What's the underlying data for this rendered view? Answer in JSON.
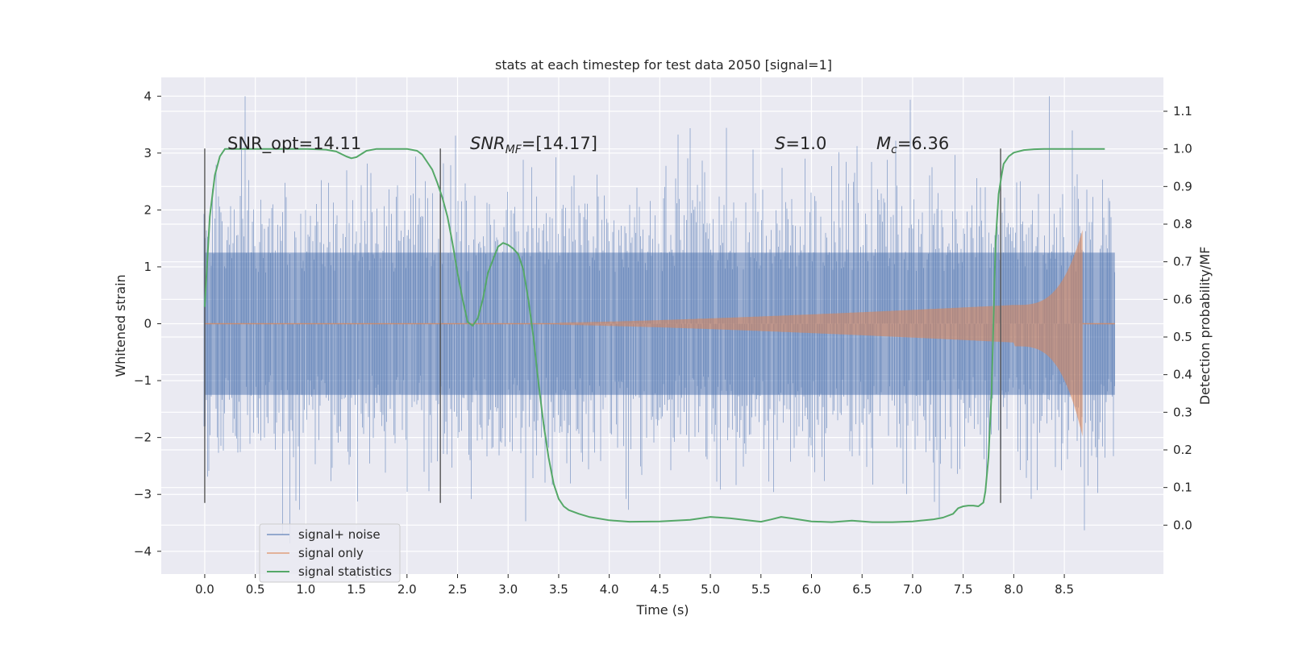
{
  "chart_data": {
    "type": "line",
    "title": "stats at each timestep for test data 2050 [signal=1]",
    "xlabel": "Time (s)",
    "ylabel": "Whitened strain",
    "y2label": "Detection probability/MF",
    "xlim": [
      -0.43,
      9.48
    ],
    "ylim": [
      -4.4,
      4.33
    ],
    "y2lim": [
      -0.13,
      1.19
    ],
    "xticks": [
      "0.0",
      "0.5",
      "1.0",
      "1.5",
      "2.0",
      "2.5",
      "3.0",
      "3.5",
      "4.0",
      "4.5",
      "5.0",
      "5.5",
      "6.0",
      "6.5",
      "7.0",
      "7.5",
      "8.0",
      "8.5"
    ],
    "yticks": [
      "4",
      "3",
      "2",
      "1",
      "0",
      "−1",
      "−2",
      "−3",
      "−4"
    ],
    "y2ticks": [
      "1.1",
      "1.0",
      "0.9",
      "0.8",
      "0.7",
      "0.6",
      "0.5",
      "0.4",
      "0.3",
      "0.2",
      "0.1",
      "0.0"
    ],
    "vlines": [
      0.0,
      2.33,
      7.87
    ],
    "vline_range": [
      -3.15,
      3.08
    ],
    "colors": {
      "plot_bg": "#eaeaf2",
      "grid": "#ffffff",
      "noise": "#4c72b0",
      "signal": "#dd8452",
      "stats": "#55a868",
      "vline": "#555555"
    },
    "legend_position": "lower-left",
    "annotations": {
      "snr_opt": "SNR_opt=14.11",
      "snr_mf_base": "SNR",
      "snr_mf_sub": "MF",
      "snr_mf_rest": "=[14.17]",
      "s_italic": "S",
      "s_rest": "=1.0",
      "mc_italic": "M",
      "mc_sub": "c",
      "mc_rest": "=6.36"
    },
    "series": [
      {
        "name": "signal+ noise",
        "style": "noise",
        "x_range": [
          0.0,
          9.0
        ],
        "envelope_core": 1.25,
        "max_abs": 4.0
      },
      {
        "name": "signal only",
        "style": "chirp",
        "t_start": 3.5,
        "t_merge": 8.68,
        "t_end": 9.0,
        "amp_at_start": 0.02,
        "amp_at_8": 0.33,
        "amp_peak": 1.65
      },
      {
        "name": "signal statistics",
        "style": "line",
        "axis": "right",
        "x": [
          0.0,
          0.05,
          0.1,
          0.15,
          0.2,
          0.3,
          0.5,
          0.8,
          1.0,
          1.1,
          1.2,
          1.3,
          1.4,
          1.45,
          1.5,
          1.6,
          1.7,
          1.8,
          1.9,
          2.0,
          2.1,
          2.15,
          2.2,
          2.25,
          2.3,
          2.35,
          2.4,
          2.45,
          2.5,
          2.55,
          2.6,
          2.65,
          2.7,
          2.75,
          2.8,
          2.9,
          2.95,
          3.0,
          3.05,
          3.1,
          3.15,
          3.2,
          3.25,
          3.3,
          3.35,
          3.4,
          3.45,
          3.5,
          3.55,
          3.6,
          3.7,
          3.8,
          4.0,
          4.2,
          4.5,
          4.8,
          5.0,
          5.2,
          5.4,
          5.5,
          5.6,
          5.7,
          5.8,
          6.0,
          6.2,
          6.4,
          6.6,
          6.8,
          7.0,
          7.2,
          7.3,
          7.4,
          7.45,
          7.5,
          7.55,
          7.6,
          7.65,
          7.7,
          7.72,
          7.75,
          7.78,
          7.8,
          7.82,
          7.85,
          7.88,
          7.9,
          7.95,
          8.0,
          8.1,
          8.2,
          8.3,
          8.5,
          8.7,
          8.9
        ],
        "values": [
          0.58,
          0.82,
          0.93,
          0.98,
          1.0,
          1.0,
          1.0,
          1.0,
          1.0,
          0.999,
          0.998,
          0.993,
          0.98,
          0.975,
          0.978,
          0.995,
          1.0,
          1.0,
          1.0,
          1.0,
          0.995,
          0.985,
          0.965,
          0.945,
          0.91,
          0.87,
          0.82,
          0.75,
          0.67,
          0.6,
          0.54,
          0.53,
          0.55,
          0.6,
          0.67,
          0.74,
          0.75,
          0.745,
          0.735,
          0.72,
          0.68,
          0.6,
          0.5,
          0.38,
          0.27,
          0.18,
          0.11,
          0.07,
          0.05,
          0.04,
          0.03,
          0.022,
          0.013,
          0.009,
          0.01,
          0.014,
          0.022,
          0.018,
          0.012,
          0.009,
          0.015,
          0.022,
          0.018,
          0.01,
          0.008,
          0.012,
          0.008,
          0.008,
          0.01,
          0.015,
          0.02,
          0.03,
          0.045,
          0.05,
          0.052,
          0.052,
          0.05,
          0.06,
          0.09,
          0.18,
          0.35,
          0.55,
          0.75,
          0.88,
          0.93,
          0.96,
          0.98,
          0.99,
          0.997,
          0.999,
          1.0,
          1.0,
          1.0,
          1.0
        ]
      }
    ]
  }
}
